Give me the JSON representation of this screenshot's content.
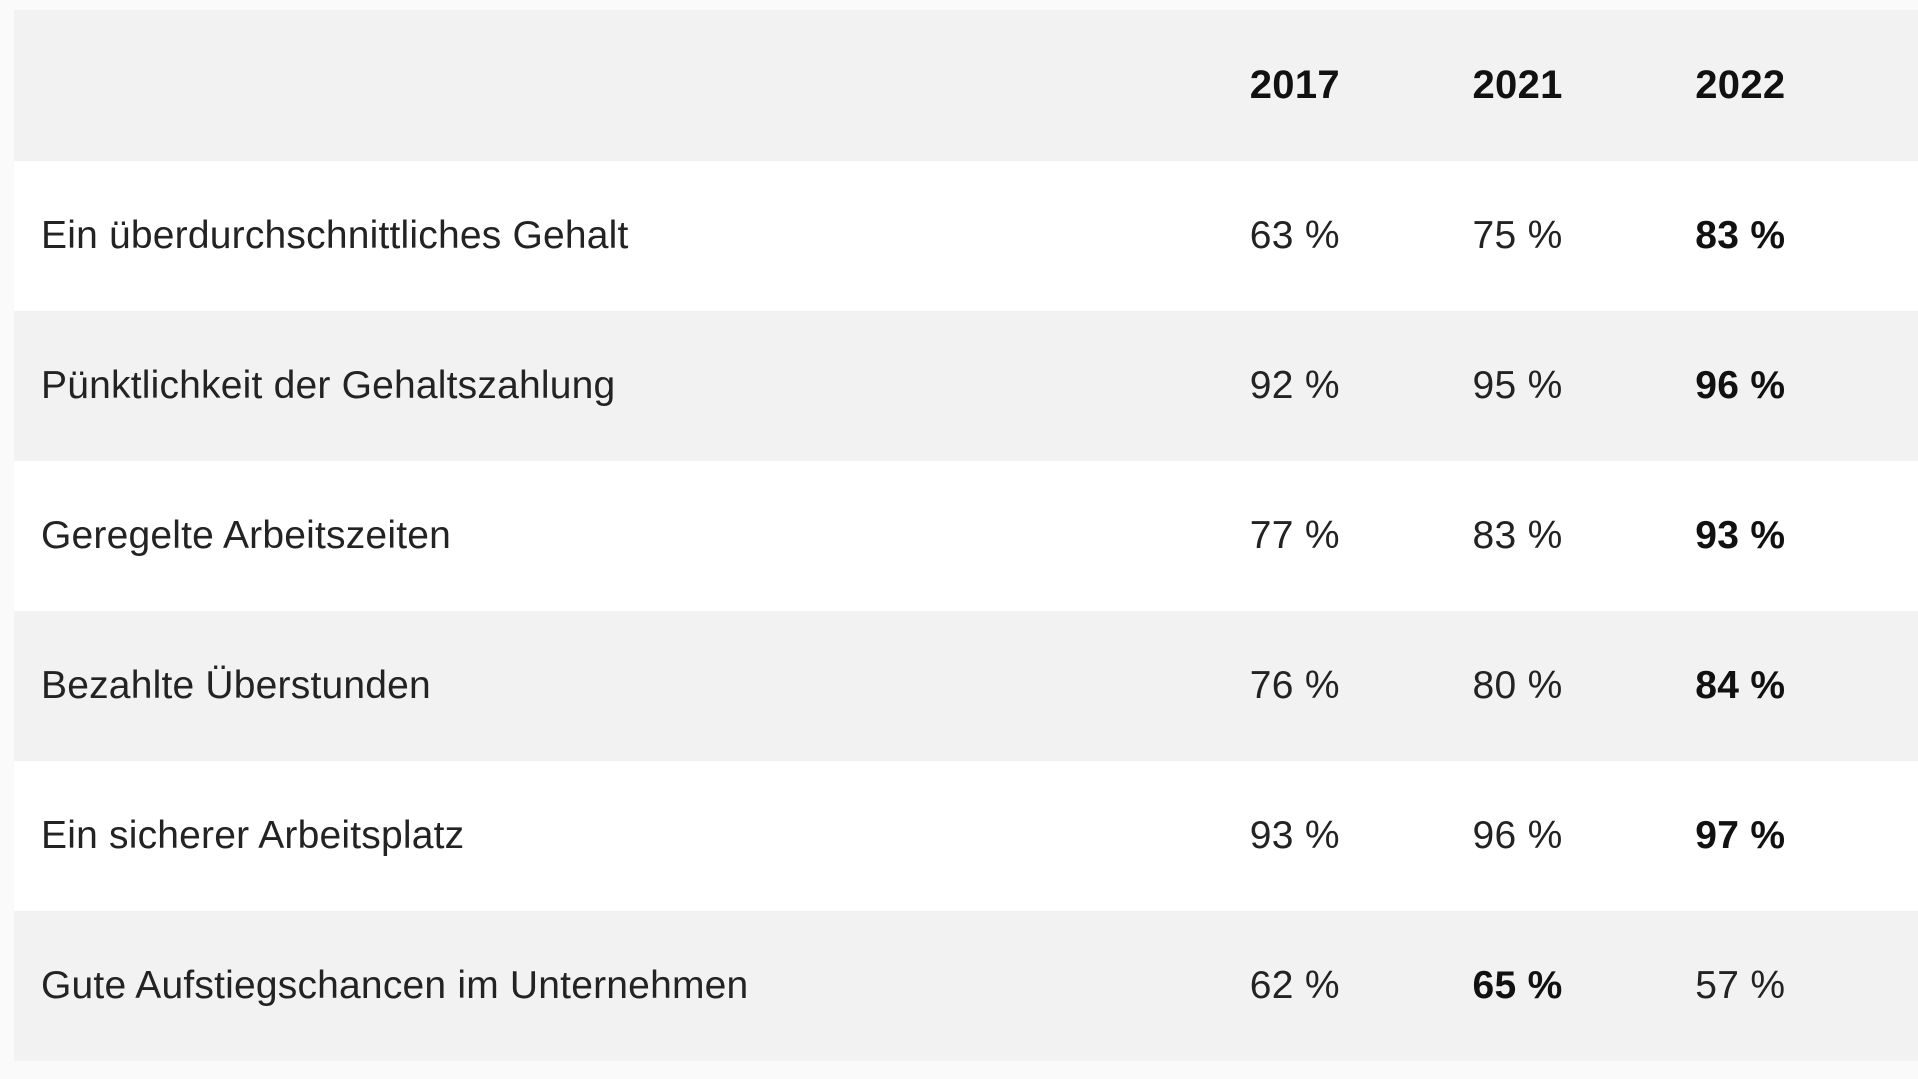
{
  "chart_data": {
    "type": "table",
    "columns": [
      "2017",
      "2021",
      "2022"
    ],
    "rows": [
      {
        "label": "Ein überdurchschnittliches Gehalt",
        "values": [
          "63 %",
          "75 %",
          "83 %"
        ],
        "bold": [
          false,
          false,
          true
        ]
      },
      {
        "label": "Pünktlichkeit der Gehaltszahlung",
        "values": [
          "92 %",
          "95 %",
          "96 %"
        ],
        "bold": [
          false,
          false,
          true
        ]
      },
      {
        "label": "Geregelte Arbeitszeiten",
        "values": [
          "77 %",
          "83 %",
          "93 %"
        ],
        "bold": [
          false,
          false,
          true
        ]
      },
      {
        "label": "Bezahlte Überstunden",
        "values": [
          "76 %",
          "80 %",
          "84 %"
        ],
        "bold": [
          false,
          false,
          true
        ]
      },
      {
        "label": "Ein sicherer Arbeitsplatz",
        "values": [
          "93 %",
          "96 %",
          "97 %"
        ],
        "bold": [
          false,
          false,
          true
        ]
      },
      {
        "label": "Gute Aufstiegschancen im Unternehmen",
        "values": [
          "62 %",
          "65 %",
          "57 %"
        ],
        "bold": [
          false,
          true,
          false
        ]
      }
    ]
  },
  "colors": {
    "shaded_row": "#f2f2f2",
    "white_row": "#ffffff",
    "text": "#232323"
  }
}
